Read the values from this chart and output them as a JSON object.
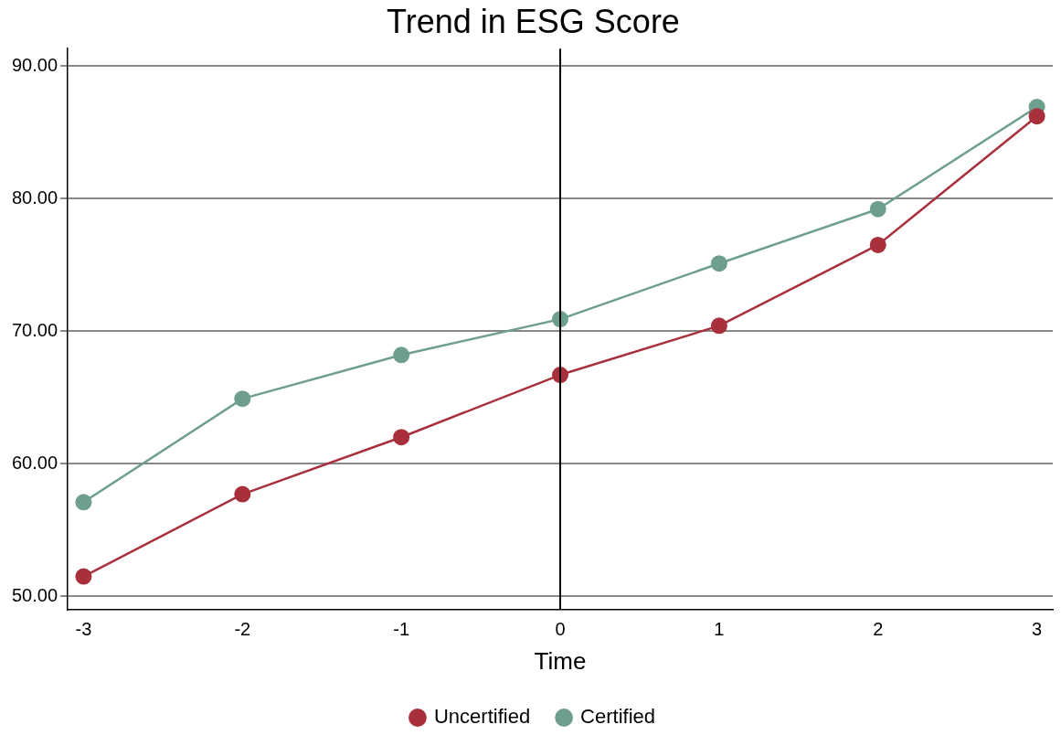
{
  "chart_data": {
    "type": "line",
    "title": "Trend in ESG Score",
    "xlabel": "Time",
    "x": [
      -3,
      -2,
      -1,
      0,
      1,
      2,
      3
    ],
    "series": [
      {
        "name": "Uncertified",
        "color": "#a8303c",
        "values": [
          51.5,
          57.7,
          62.0,
          66.7,
          70.4,
          76.5,
          86.2
        ]
      },
      {
        "name": "Certified",
        "color": "#6e9e8c",
        "values": [
          57.1,
          64.9,
          68.2,
          70.9,
          75.1,
          79.2,
          86.9
        ]
      }
    ],
    "xlim": [
      -3.1,
      3.1
    ],
    "xticks": [
      -3,
      -2,
      -1,
      0,
      1,
      2,
      3
    ],
    "ylim": [
      49,
      91.3
    ],
    "yticks": [
      {
        "value": 50,
        "label": "50.00"
      },
      {
        "value": 60,
        "label": "60.00"
      },
      {
        "value": 70,
        "label": "70.00"
      },
      {
        "value": 80,
        "label": "80.00"
      },
      {
        "value": 90,
        "label": "90.00"
      }
    ],
    "ref_lines": [
      {
        "axis": "x",
        "value": 0,
        "color": "#000000"
      }
    ],
    "grid": "y",
    "legend": "bottom",
    "marker": "circle",
    "line_style": "solid"
  }
}
